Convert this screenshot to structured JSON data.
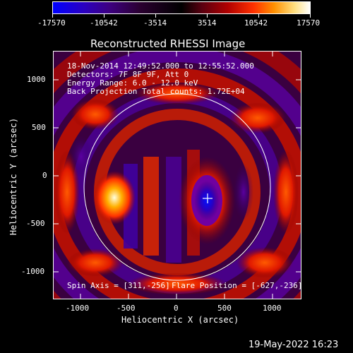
{
  "colorbar": {
    "ticks": [
      "-17570",
      "-10542",
      "-3514",
      "3514",
      "10542",
      "17570"
    ]
  },
  "plot": {
    "title": "Reconstructed RHESSI Image",
    "info_lines": [
      "18-Nov-2014 12:49:52.000 to 12:55:52.000",
      "Detectors: 7F 8F 9F, Att 0",
      "Energy Range: 6.0 - 12.0 keV",
      "Back Projection     Total counts: 1.72E+04"
    ],
    "spin_axis": "Spin Axis = [311,-256]",
    "flare_position": "Flare Position = [-627,-236]",
    "xlabel": "Heliocentric X (arcsec)",
    "ylabel": "Heliocentric Y (arcsec)",
    "x_ticks": [
      "-1000",
      "-500",
      "0",
      "500",
      "1000"
    ],
    "y_ticks": [
      "1000",
      "500",
      "0",
      "-500",
      "-1000"
    ]
  },
  "footer": {
    "timestamp": "19-May-2022 16:23"
  }
}
